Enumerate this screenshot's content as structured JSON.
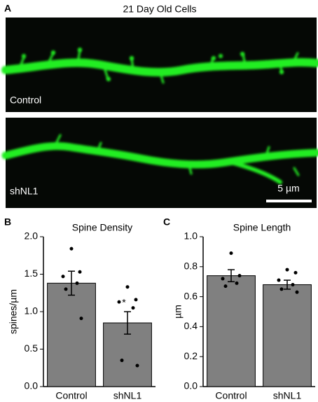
{
  "panel_a": {
    "label": "A",
    "title": "21 Day Old Cells",
    "top_label": "Control",
    "bottom_label": "shNL1",
    "scale_bar": "5 µm"
  },
  "chart_data": [
    {
      "type": "bar",
      "panel_label": "B",
      "title": "Spine Density",
      "y_label": "spines/µm",
      "categories": [
        "Control",
        "shNL1"
      ],
      "values": [
        1.38,
        0.85
      ],
      "errors": [
        0.16,
        0.15
      ],
      "points": [
        [
          1.84,
          1.53,
          1.47,
          1.38,
          1.3,
          0.91
        ],
        [
          1.33,
          1.16,
          1.13,
          1.05,
          0.35,
          0.28
        ]
      ],
      "annotation": "*",
      "color": "#808080",
      "ylim": [
        0,
        2
      ],
      "yticks": [
        {
          "value": 0,
          "label": "0.0"
        },
        {
          "value": 0.5,
          "label": "0.5"
        },
        {
          "value": 1,
          "label": "1.0"
        },
        {
          "value": 1.5,
          "label": "1.5"
        },
        {
          "value": 2,
          "label": "2.0"
        }
      ]
    },
    {
      "type": "bar",
      "panel_label": "C",
      "title": "Spine Length",
      "y_label": "µm",
      "categories": [
        "Control",
        "shNL1"
      ],
      "values": [
        0.74,
        0.68
      ],
      "errors": [
        0.04,
        0.03
      ],
      "points": [
        [
          0.89,
          0.74,
          0.72,
          0.69,
          0.67
        ],
        [
          0.78,
          0.76,
          0.71,
          0.68,
          0.65,
          0.63
        ]
      ],
      "color": "#808080",
      "ylim": [
        0,
        1
      ],
      "yticks": [
        {
          "value": 0,
          "label": "0.0"
        },
        {
          "value": 0.2,
          "label": "0.2"
        },
        {
          "value": 0.4,
          "label": "0.4"
        },
        {
          "value": 0.6,
          "label": "0.6"
        },
        {
          "value": 0.8,
          "label": "0.8"
        },
        {
          "value": 1,
          "label": "1.0"
        }
      ]
    }
  ]
}
